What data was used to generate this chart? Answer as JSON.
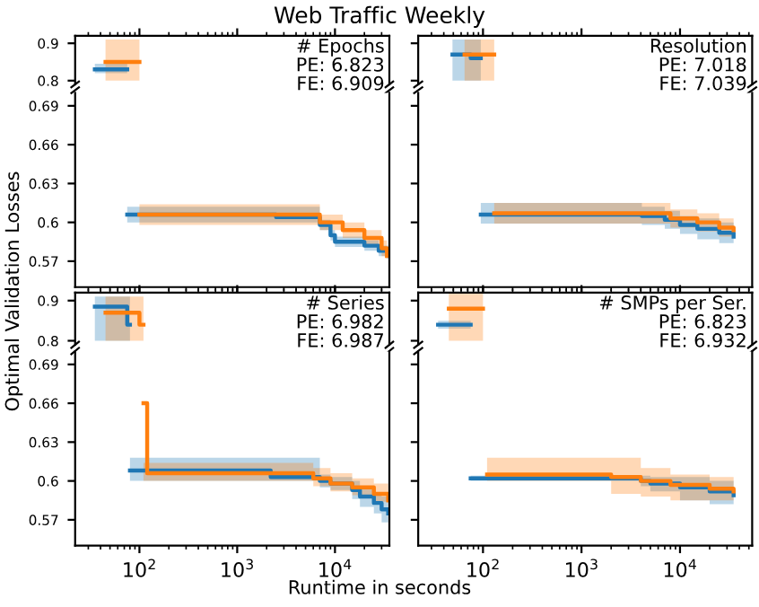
{
  "chart_data": [
    {
      "type": "step",
      "title": "Web Traffic Weekly",
      "ylabel": "Optimal Validation Losses",
      "annotations": [
        "# Epochs",
        "PE: 6.823",
        "FE: 6.909"
      ],
      "xlim": [
        22,
        36000
      ],
      "ylim": [
        0.79,
        0.92
      ],
      "yticks": [
        0.8,
        0.9
      ],
      "xticks": [
        {
          "value": 100,
          "label": null
        },
        {
          "value": 1000,
          "label": null
        },
        {
          "value": 10000,
          "label": null
        }
      ],
      "log": "x",
      "tick_labels": "y",
      "series": [
        {
          "color": "#1f77b4",
          "x": [
            35,
            75
          ],
          "values": [
            0.83,
            0.83
          ],
          "lower": [
            0.82,
            0.82
          ],
          "upper": [
            0.845,
            0.845
          ]
        },
        {
          "color": "#ff7f0e",
          "x": [
            45,
            100
          ],
          "values": [
            0.85,
            0.85
          ],
          "lower": [
            0.8,
            0.8
          ],
          "upper": [
            0.91,
            0.91
          ]
        }
      ]
    },
    {
      "type": "step",
      "xlim": [
        22,
        36000
      ],
      "ylim": [
        0.55,
        0.7
      ],
      "yticks": [
        0.57,
        0.6,
        0.63,
        0.66,
        0.69
      ],
      "xticks": [
        {
          "value": 100,
          "label": null
        },
        {
          "value": 1000,
          "label": null
        },
        {
          "value": 10000,
          "label": null
        }
      ],
      "log": "x",
      "tick_labels": "y",
      "series": [
        {
          "color": "#1f77b4",
          "x": [
            75,
            2500,
            7000,
            9000,
            10000,
            20000,
            28000,
            35000
          ],
          "values": [
            0.606,
            0.604,
            0.598,
            0.59,
            0.585,
            0.582,
            0.578,
            0.574
          ],
          "lower": [
            0.6,
            0.6,
            0.594,
            0.586,
            0.581,
            0.578,
            0.574,
            0.57
          ],
          "upper": [
            0.612,
            0.612,
            0.602,
            0.594,
            0.589,
            0.586,
            0.582,
            0.578
          ]
        },
        {
          "color": "#ff7f0e",
          "x": [
            100,
            7000,
            12000,
            20000,
            30000,
            34000
          ],
          "values": [
            0.606,
            0.6,
            0.594,
            0.588,
            0.58,
            0.574
          ],
          "lower": [
            0.598,
            0.594,
            0.588,
            0.582,
            0.574,
            0.57
          ],
          "upper": [
            0.614,
            0.606,
            0.6,
            0.594,
            0.586,
            0.578
          ]
        }
      ]
    },
    {
      "type": "step",
      "annotations": [
        "Resolution",
        "PE: 7.018",
        "FE: 7.039"
      ],
      "xlim": [
        22,
        54000
      ],
      "ylim": [
        0.79,
        0.92
      ],
      "yticks": [
        {
          "value": 0.8,
          "label": null
        },
        {
          "value": 0.9,
          "label": null
        }
      ],
      "xticks": [
        {
          "value": 100,
          "label": null
        },
        {
          "value": 1000,
          "label": null
        },
        {
          "value": 10000,
          "label": null
        }
      ],
      "log": "x",
      "tick_labels": false,
      "series": [
        {
          "color": "#1f77b4",
          "x": [
            49,
            75,
            95
          ],
          "values": [
            0.87,
            0.86,
            0.86
          ],
          "lower": [
            0.8,
            0.8,
            0.8
          ],
          "upper": [
            0.91,
            0.91,
            0.91
          ]
        },
        {
          "color": "#ff7f0e",
          "x": [
            65,
            130
          ],
          "values": [
            0.87,
            0.87
          ],
          "lower": [
            0.8,
            0.8
          ],
          "upper": [
            0.91,
            0.91
          ]
        }
      ]
    },
    {
      "type": "step",
      "xlim": [
        22,
        54000
      ],
      "ylim": [
        0.55,
        0.7
      ],
      "yticks": [
        {
          "value": 0.57,
          "label": null
        },
        {
          "value": 0.6,
          "label": null
        },
        {
          "value": 0.63,
          "label": null
        },
        {
          "value": 0.66,
          "label": null
        },
        {
          "value": 0.69,
          "label": null
        }
      ],
      "xticks": [
        {
          "value": 100,
          "label": null
        },
        {
          "value": 1000,
          "label": null
        },
        {
          "value": 10000,
          "label": null
        }
      ],
      "log": "x",
      "tick_labels": false,
      "series": [
        {
          "color": "#1f77b4",
          "x": [
            95,
            4100,
            7000,
            10000,
            15000,
            25000,
            35000
          ],
          "values": [
            0.606,
            0.605,
            0.602,
            0.598,
            0.595,
            0.592,
            0.589
          ],
          "lower": [
            0.599,
            0.598,
            0.595,
            0.591,
            0.587,
            0.584,
            0.582
          ],
          "upper": [
            0.615,
            0.612,
            0.609,
            0.605,
            0.603,
            0.6,
            0.596
          ]
        },
        {
          "color": "#ff7f0e",
          "x": [
            130,
            8000,
            15000,
            25000,
            35000
          ],
          "values": [
            0.607,
            0.603,
            0.6,
            0.596,
            0.594
          ],
          "lower": [
            0.599,
            0.596,
            0.593,
            0.589,
            0.587
          ],
          "upper": [
            0.615,
            0.61,
            0.607,
            0.603,
            0.601
          ]
        }
      ]
    },
    {
      "type": "step",
      "annotations": [
        "# Series",
        "PE: 6.982",
        "FE: 6.987"
      ],
      "xlim": [
        22,
        36000
      ],
      "ylim": [
        0.79,
        0.92
      ],
      "yticks": [
        0.8,
        0.9
      ],
      "xticks": [
        {
          "value": 100,
          "label": null
        },
        {
          "value": 1000,
          "label": null
        },
        {
          "value": 10000,
          "label": null
        }
      ],
      "log": "x",
      "tick_labels": "y",
      "series": [
        {
          "color": "#1f77b4",
          "x": [
            35,
            75,
            80
          ],
          "values": [
            0.885,
            0.84,
            0.84
          ],
          "lower": [
            0.8,
            0.8,
            0.8
          ],
          "upper": [
            0.91,
            0.91,
            0.91
          ]
        },
        {
          "color": "#ff7f0e",
          "x": [
            45,
            100,
            110
          ],
          "values": [
            0.87,
            0.84,
            0.84
          ],
          "lower": [
            0.8,
            0.8,
            0.8
          ],
          "upper": [
            0.91,
            0.91,
            0.91
          ]
        }
      ]
    },
    {
      "type": "step",
      "xlabel": null,
      "xlim": [
        22,
        36000
      ],
      "ylim": [
        0.55,
        0.7
      ],
      "yticks": [
        0.57,
        0.6,
        0.63,
        0.66,
        0.69
      ],
      "xticks": [
        {
          "value": 100,
          "label": "10$^{2}$"
        },
        {
          "value": 1000,
          "label": "10$^{3}$"
        },
        {
          "value": 10000,
          "label": "10$^{4}$"
        }
      ],
      "log": "x",
      "series": [
        {
          "color": "#1f77b4",
          "x": [
            80,
            2200,
            7000,
            9000,
            15000,
            18000,
            25000,
            30000,
            35000
          ],
          "values": [
            0.608,
            0.603,
            0.6,
            0.598,
            0.593,
            0.588,
            0.583,
            0.578,
            0.575
          ],
          "lower": [
            0.6,
            0.6,
            0.595,
            0.593,
            0.586,
            0.58,
            0.575,
            0.568,
            0.562
          ],
          "upper": [
            0.618,
            0.618,
            0.605,
            0.603,
            0.6,
            0.595,
            0.59,
            0.588,
            0.585
          ]
        },
        {
          "color": "#ff7f0e",
          "x": [
            110,
            120,
            6000,
            9000,
            15000,
            25000,
            35000
          ],
          "values": [
            0.66,
            0.606,
            0.602,
            0.598,
            0.595,
            0.59,
            0.585
          ],
          "lower": [
            0.6,
            0.6,
            0.596,
            0.592,
            0.589,
            0.584,
            0.579
          ],
          "upper": [
            0.614,
            0.614,
            0.61,
            0.606,
            0.602,
            0.598,
            0.593
          ]
        }
      ]
    },
    {
      "type": "step",
      "annotations": [
        "# SMPs per Ser.",
        "PE: 6.823",
        "FE: 6.932"
      ],
      "xlim": [
        22,
        54000
      ],
      "ylim": [
        0.79,
        0.92
      ],
      "yticks": [
        {
          "value": 0.8,
          "label": null
        },
        {
          "value": 0.9,
          "label": null
        }
      ],
      "xticks": [
        {
          "value": 100,
          "label": null
        },
        {
          "value": 1000,
          "label": null
        },
        {
          "value": 10000,
          "label": null
        }
      ],
      "log": "x",
      "tick_labels": false,
      "series": [
        {
          "color": "#1f77b4",
          "x": [
            35,
            75
          ],
          "values": [
            0.84,
            0.84
          ],
          "lower": [
            0.83,
            0.83
          ],
          "upper": [
            0.85,
            0.85
          ]
        },
        {
          "color": "#ff7f0e",
          "x": [
            45,
            100
          ],
          "values": [
            0.88,
            0.88
          ],
          "lower": [
            0.8,
            0.8
          ],
          "upper": [
            0.92,
            0.92
          ]
        }
      ]
    },
    {
      "type": "step",
      "xlabel": "Runtime in seconds",
      "xlim": [
        22,
        54000
      ],
      "ylim": [
        0.55,
        0.7
      ],
      "yticks": [
        {
          "value": 0.57,
          "label": null
        },
        {
          "value": 0.6,
          "label": null
        },
        {
          "value": 0.63,
          "label": null
        },
        {
          "value": 0.66,
          "label": null
        },
        {
          "value": 0.69,
          "label": null
        }
      ],
      "xticks": [
        {
          "value": 100,
          "label": "10$^{2}$"
        },
        {
          "value": 1000,
          "label": "10$^{3}$"
        },
        {
          "value": 10000,
          "label": "10$^{4}$"
        }
      ],
      "log": "x",
      "tick_labels": "x",
      "series": [
        {
          "color": "#1f77b4",
          "x": [
            75,
            4000,
            5000,
            10000,
            20000,
            35000
          ],
          "values": [
            0.602,
            0.6,
            0.598,
            0.595,
            0.592,
            0.589
          ],
          "lower": [
            0.6,
            0.596,
            0.592,
            0.585,
            0.582,
            0.58
          ],
          "upper": [
            0.604,
            0.604,
            0.603,
            0.603,
            0.6,
            0.597
          ]
        },
        {
          "color": "#ff7f0e",
          "x": [
            110,
            2000,
            4000,
            8000,
            20000,
            35000
          ],
          "values": [
            0.605,
            0.603,
            0.6,
            0.597,
            0.594,
            0.592
          ],
          "lower": [
            0.6,
            0.59,
            0.588,
            0.585,
            0.585,
            0.585
          ],
          "upper": [
            0.618,
            0.618,
            0.61,
            0.605,
            0.603,
            0.6
          ]
        }
      ]
    }
  ]
}
